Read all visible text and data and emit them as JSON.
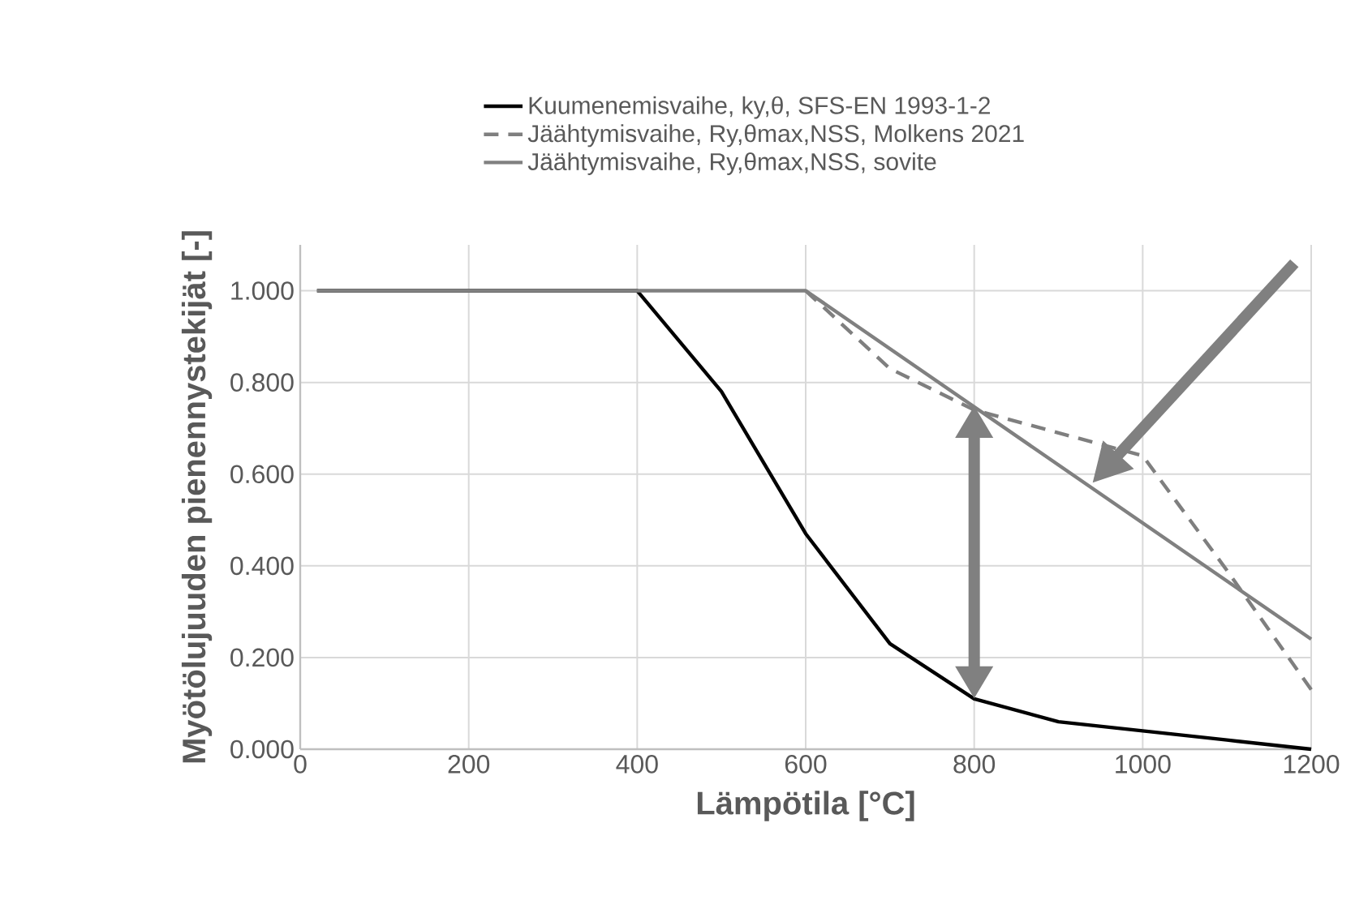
{
  "chart_data": {
    "type": "line",
    "xlabel": "Lämpötila [°C]",
    "ylabel": "Myötölujuuden pienennystekijät [-]",
    "xlim": [
      0,
      1200
    ],
    "ylim": [
      0,
      1.1
    ],
    "xticks": [
      0,
      200,
      400,
      600,
      800,
      1000,
      1200
    ],
    "yticks": [
      {
        "value": 0,
        "label": "0.000"
      },
      {
        "value": 0.2,
        "label": "0.200"
      },
      {
        "value": 0.4,
        "label": "0.400"
      },
      {
        "value": 0.6,
        "label": "0.600"
      },
      {
        "value": 0.8,
        "label": "0.800"
      },
      {
        "value": 1,
        "label": "1.000"
      }
    ],
    "grid": true,
    "legend": "top",
    "marker": "none",
    "series": [
      {
        "name": "Kuumenemisvaihe, ky,θ, SFS-EN 1993-1-2",
        "color": "#000000",
        "line_style": "solid",
        "x": [
          20,
          400,
          500,
          600,
          700,
          800,
          900,
          1000,
          1100,
          1200
        ],
        "values": [
          1,
          1,
          0.78,
          0.47,
          0.23,
          0.11,
          0.06,
          0.04,
          0.02,
          0
        ]
      },
      {
        "name": "Jäähtymisvaihe, Ry,θmax,NSS, Molkens 2021",
        "color": "#7f7f7f",
        "line_style": "dashed",
        "x": [
          600,
          700,
          800,
          900,
          1000,
          1100,
          1200
        ],
        "values": [
          1,
          0.83,
          0.74,
          0.69,
          0.64,
          0.39,
          0.13
        ]
      },
      {
        "name": "Jäähtymisvaihe, Ry,θmax,NSS, sovite",
        "color": "#808080",
        "line_style": "solid",
        "x": [
          20,
          600,
          1200
        ],
        "values": [
          1,
          1,
          0.24
        ]
      }
    ]
  }
}
